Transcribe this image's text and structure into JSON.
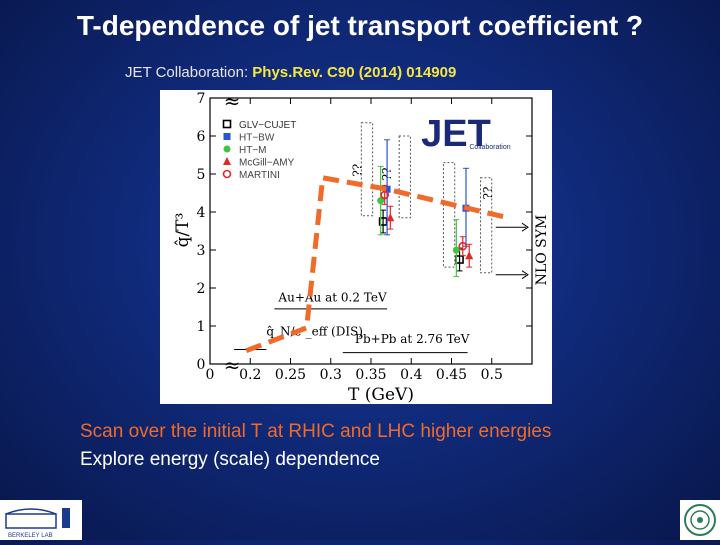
{
  "slide": {
    "title": "T-dependence of jet transport coefficient ?",
    "citation_prefix": "JET Collaboration: ",
    "citation_ref": "Phys.Rev. C90 (2014)  014909",
    "bullets": [
      "Scan over the initial T at RHIC and LHC higher energies",
      "Explore energy (scale) dependence"
    ],
    "logo_left_label": "BERKELEY LAB"
  },
  "chart_data": {
    "type": "scatter",
    "xlabel": "T (GeV)",
    "ylabel": "q̂/T³",
    "xlim": [
      0.15,
      0.55
    ],
    "ylim": [
      0,
      7
    ],
    "x_ticks": [
      "0",
      "0.2",
      "0.25",
      "0.3",
      "0.35",
      "0.4",
      "0.45",
      "0.5"
    ],
    "y_ticks": [
      "0",
      "1",
      "2",
      "3",
      "4",
      "5",
      "6",
      "7"
    ],
    "legend_position": "top-left",
    "series": [
      {
        "name": "GLV−CUJET",
        "color": "#000000",
        "marker": "open-square",
        "points": [
          {
            "x": 0.365,
            "y": 3.75,
            "lo": 3.45,
            "hi": 4.05
          },
          {
            "x": 0.46,
            "y": 2.75,
            "lo": 2.45,
            "hi": 3.05
          }
        ]
      },
      {
        "name": "HT−BW",
        "color": "#2a52d8",
        "marker": "filled-square",
        "points": [
          {
            "x": 0.37,
            "y": 4.6,
            "lo": 3.4,
            "hi": 5.9
          },
          {
            "x": 0.468,
            "y": 4.1,
            "lo": 3.1,
            "hi": 5.15
          }
        ]
      },
      {
        "name": "HT−M",
        "color": "#42c442",
        "marker": "filled-circle",
        "points": [
          {
            "x": 0.362,
            "y": 4.3,
            "lo": 3.4,
            "hi": 5.2
          },
          {
            "x": 0.456,
            "y": 3.0,
            "lo": 2.3,
            "hi": 3.8
          }
        ]
      },
      {
        "name": "McGill−AMY",
        "color": "#e02828",
        "marker": "filled-triangle",
        "points": [
          {
            "x": 0.374,
            "y": 3.85,
            "lo": 3.55,
            "hi": 4.15
          },
          {
            "x": 0.472,
            "y": 2.85,
            "lo": 2.55,
            "hi": 3.15
          }
        ]
      },
      {
        "name": "MARTINI",
        "color": "#e02828",
        "marker": "open-circle",
        "points": [
          {
            "x": 0.367,
            "y": 4.45,
            "lo": 4.2,
            "hi": 4.7
          },
          {
            "x": 0.464,
            "y": 3.1,
            "lo": 2.85,
            "hi": 3.35
          }
        ]
      }
    ],
    "rhic_point": {
      "x": 0.37,
      "y": 4.6
    },
    "lhc_point": {
      "x": 0.47,
      "y": 4.1
    },
    "annotations": {
      "dis": "q̂_N/ε³_eff (DIS)",
      "rhic": "Au+Au at 0.2 TeV",
      "lhc": "Pb+Pb at 2.76 TeV",
      "nlo": "NLO  SYM",
      "unknown": "??",
      "break": "≈",
      "jet_logo": "JET",
      "jet_logo_sub": "Collaboration"
    },
    "trend_line": {
      "color": "#f06a2a",
      "points": [
        {
          "x": 0.195,
          "y": 0.35
        },
        {
          "x": 0.27,
          "y": 0.95
        },
        {
          "x": 0.29,
          "y": 4.9
        },
        {
          "x": 0.37,
          "y": 4.6
        },
        {
          "x": 0.47,
          "y": 4.1
        },
        {
          "x": 0.52,
          "y": 3.85
        }
      ]
    },
    "dotted_bands": [
      {
        "x0": 0.338,
        "x1": 0.352,
        "y0": 3.9,
        "y1": 6.35
      },
      {
        "x0": 0.385,
        "x1": 0.399,
        "y0": 3.85,
        "y1": 6.0
      },
      {
        "x0": 0.44,
        "x1": 0.454,
        "y0": 2.55,
        "y1": 5.3
      },
      {
        "x0": 0.486,
        "x1": 0.5,
        "y0": 2.4,
        "y1": 4.9
      }
    ]
  }
}
